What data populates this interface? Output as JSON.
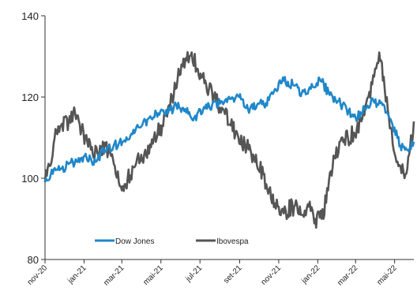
{
  "chart_data": {
    "type": "line",
    "title": "",
    "xlabel": "",
    "ylabel": "",
    "ylim": [
      80,
      140
    ],
    "yticks": [
      "80",
      "100",
      "120",
      "140"
    ],
    "xlim": [
      "2020-11-01",
      "2022-05-31"
    ],
    "xticks": [
      {
        "date": "2020-11-01",
        "label": "nov-20"
      },
      {
        "date": "2021-01-01",
        "label": "jan-21"
      },
      {
        "date": "2021-03-01",
        "label": "mar-21"
      },
      {
        "date": "2021-05-01",
        "label": "mai-21"
      },
      {
        "date": "2021-07-01",
        "label": "jul-21"
      },
      {
        "date": "2021-09-01",
        "label": "set-21"
      },
      {
        "date": "2021-11-01",
        "label": "nov-21"
      },
      {
        "date": "2022-01-01",
        "label": "jan-22"
      },
      {
        "date": "2022-03-01",
        "label": "mar-22"
      },
      {
        "date": "2022-05-01",
        "label": "mai-22"
      }
    ],
    "grid": false,
    "legend_position": "bottom-left",
    "series": [
      {
        "name": "Dow Jones",
        "color": "#1f87c9",
        "points": [
          [
            "2020-11-01",
            99
          ],
          [
            "2020-11-10",
            101
          ],
          [
            "2020-11-24",
            102
          ],
          [
            "2020-12-08",
            103.5
          ],
          [
            "2020-12-22",
            104
          ],
          [
            "2021-01-05",
            105
          ],
          [
            "2021-01-19",
            104
          ],
          [
            "2021-02-02",
            107
          ],
          [
            "2021-02-16",
            108
          ],
          [
            "2021-03-02",
            109
          ],
          [
            "2021-03-16",
            111
          ],
          [
            "2021-03-30",
            112.5
          ],
          [
            "2021-04-13",
            115
          ],
          [
            "2021-04-27",
            116
          ],
          [
            "2021-05-11",
            116
          ],
          [
            "2021-05-25",
            118
          ],
          [
            "2021-06-08",
            117
          ],
          [
            "2021-06-22",
            115
          ],
          [
            "2021-07-06",
            117
          ],
          [
            "2021-07-20",
            118
          ],
          [
            "2021-08-03",
            119
          ],
          [
            "2021-08-17",
            119.5
          ],
          [
            "2021-08-31",
            120
          ],
          [
            "2021-09-14",
            117
          ],
          [
            "2021-09-28",
            118
          ],
          [
            "2021-10-12",
            118.5
          ],
          [
            "2021-10-26",
            122
          ],
          [
            "2021-11-09",
            124
          ],
          [
            "2021-11-23",
            123
          ],
          [
            "2021-12-07",
            121
          ],
          [
            "2021-12-21",
            122
          ],
          [
            "2022-01-04",
            124.5
          ],
          [
            "2022-01-18",
            121
          ],
          [
            "2022-02-01",
            119
          ],
          [
            "2022-02-15",
            117
          ],
          [
            "2022-03-01",
            115
          ],
          [
            "2022-03-15",
            117
          ],
          [
            "2022-03-29",
            119
          ],
          [
            "2022-04-12",
            118
          ],
          [
            "2022-04-26",
            114
          ],
          [
            "2022-05-10",
            108
          ],
          [
            "2022-05-20",
            107
          ],
          [
            "2022-05-31",
            109
          ]
        ]
      },
      {
        "name": "Ibovespa",
        "color": "#555555",
        "points": [
          [
            "2020-11-01",
            99
          ],
          [
            "2020-11-08",
            103
          ],
          [
            "2020-11-16",
            110
          ],
          [
            "2020-11-26",
            113
          ],
          [
            "2020-12-08",
            114
          ],
          [
            "2020-12-18",
            116
          ],
          [
            "2020-12-28",
            112
          ],
          [
            "2021-01-06",
            109
          ],
          [
            "2021-01-16",
            105
          ],
          [
            "2021-01-26",
            108
          ],
          [
            "2021-02-08",
            107
          ],
          [
            "2021-02-18",
            103
          ],
          [
            "2021-03-01",
            97
          ],
          [
            "2021-03-10",
            100
          ],
          [
            "2021-03-22",
            103
          ],
          [
            "2021-04-05",
            106
          ],
          [
            "2021-04-20",
            110
          ],
          [
            "2021-05-03",
            113
          ],
          [
            "2021-05-14",
            118
          ],
          [
            "2021-05-24",
            122
          ],
          [
            "2021-06-02",
            128
          ],
          [
            "2021-06-10",
            129
          ],
          [
            "2021-06-18",
            131
          ],
          [
            "2021-06-26",
            127
          ],
          [
            "2021-07-05",
            125
          ],
          [
            "2021-07-15",
            122
          ],
          [
            "2021-07-26",
            119
          ],
          [
            "2021-08-06",
            117
          ],
          [
            "2021-08-18",
            113
          ],
          [
            "2021-08-30",
            110
          ],
          [
            "2021-09-12",
            108
          ],
          [
            "2021-09-25",
            104
          ],
          [
            "2021-10-08",
            101
          ],
          [
            "2021-10-20",
            95
          ],
          [
            "2021-11-01",
            93
          ],
          [
            "2021-11-12",
            92
          ],
          [
            "2021-11-25",
            93
          ],
          [
            "2021-12-07",
            91
          ],
          [
            "2021-12-18",
            93
          ],
          [
            "2021-12-28",
            90
          ],
          [
            "2022-01-07",
            90
          ],
          [
            "2022-01-17",
            97
          ],
          [
            "2022-01-27",
            105
          ],
          [
            "2022-02-07",
            110
          ],
          [
            "2022-02-17",
            110
          ],
          [
            "2022-02-28",
            111
          ],
          [
            "2022-03-10",
            114
          ],
          [
            "2022-03-21",
            120
          ],
          [
            "2022-03-30",
            125
          ],
          [
            "2022-04-07",
            131
          ],
          [
            "2022-04-14",
            125
          ],
          [
            "2022-04-22",
            115
          ],
          [
            "2022-05-01",
            106
          ],
          [
            "2022-05-10",
            103
          ],
          [
            "2022-05-18",
            101
          ],
          [
            "2022-05-25",
            107
          ],
          [
            "2022-05-31",
            114
          ]
        ]
      }
    ]
  },
  "legend": [
    {
      "label": "Dow Jones",
      "color": "#1f87c9"
    },
    {
      "label": "Ibovespa",
      "color": "#555555"
    }
  ]
}
